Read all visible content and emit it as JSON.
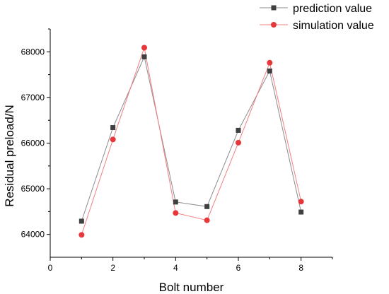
{
  "chart_data": {
    "type": "line",
    "title": "",
    "xlabel": "Bolt number",
    "ylabel": "Residual preload/N",
    "xlim": [
      0,
      9
    ],
    "ylim": [
      63500,
      68500
    ],
    "xticks": [
      0,
      2,
      4,
      6,
      8
    ],
    "yticks": [
      64000,
      65000,
      66000,
      67000,
      68000
    ],
    "grid": false,
    "legend_position": "top-right",
    "series": [
      {
        "name": "prediction value",
        "marker": "square",
        "line_color": "#8c8c8c",
        "marker_color": "#404040",
        "x": [
          1,
          2,
          3,
          4,
          5,
          6,
          7,
          8
        ],
        "y": [
          64290,
          66340,
          67890,
          64710,
          64610,
          66280,
          67580,
          64490
        ]
      },
      {
        "name": "simulation value",
        "marker": "circle",
        "line_color": "#f08080",
        "marker_color": "#e8373b",
        "x": [
          1,
          2,
          3,
          4,
          5,
          6,
          7,
          8
        ],
        "y": [
          63990,
          66080,
          68090,
          64470,
          64310,
          66010,
          67760,
          64720
        ]
      }
    ]
  }
}
